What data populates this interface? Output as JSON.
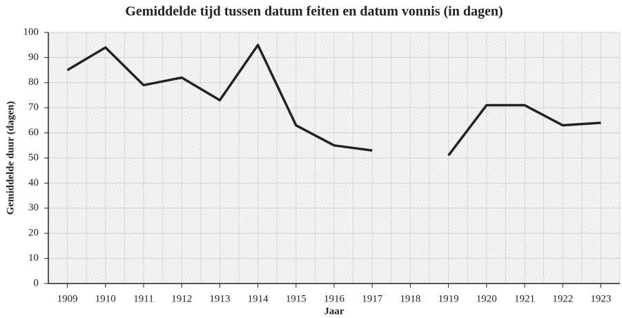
{
  "chart_data": {
    "type": "line",
    "title": "Gemiddelde tijd tussen datum feiten en datum vonnis (in dagen)",
    "x_label": "Jaar",
    "y_label": "Gemiddelde duur (dagen)",
    "categories": [
      "1909",
      "1910",
      "1911",
      "1912",
      "1913",
      "1914",
      "1915",
      "1916",
      "1917",
      "1918",
      "1919",
      "1920",
      "1921",
      "1922",
      "1923"
    ],
    "values": [
      85,
      94,
      79,
      82,
      73,
      95,
      63,
      55,
      53,
      null,
      51,
      71,
      71,
      63,
      64
    ],
    "color": "#222222",
    "ylim": [
      0,
      100
    ],
    "yticks": [
      0,
      10,
      20,
      30,
      40,
      50,
      60,
      70,
      80,
      90,
      100
    ],
    "grid": true
  }
}
